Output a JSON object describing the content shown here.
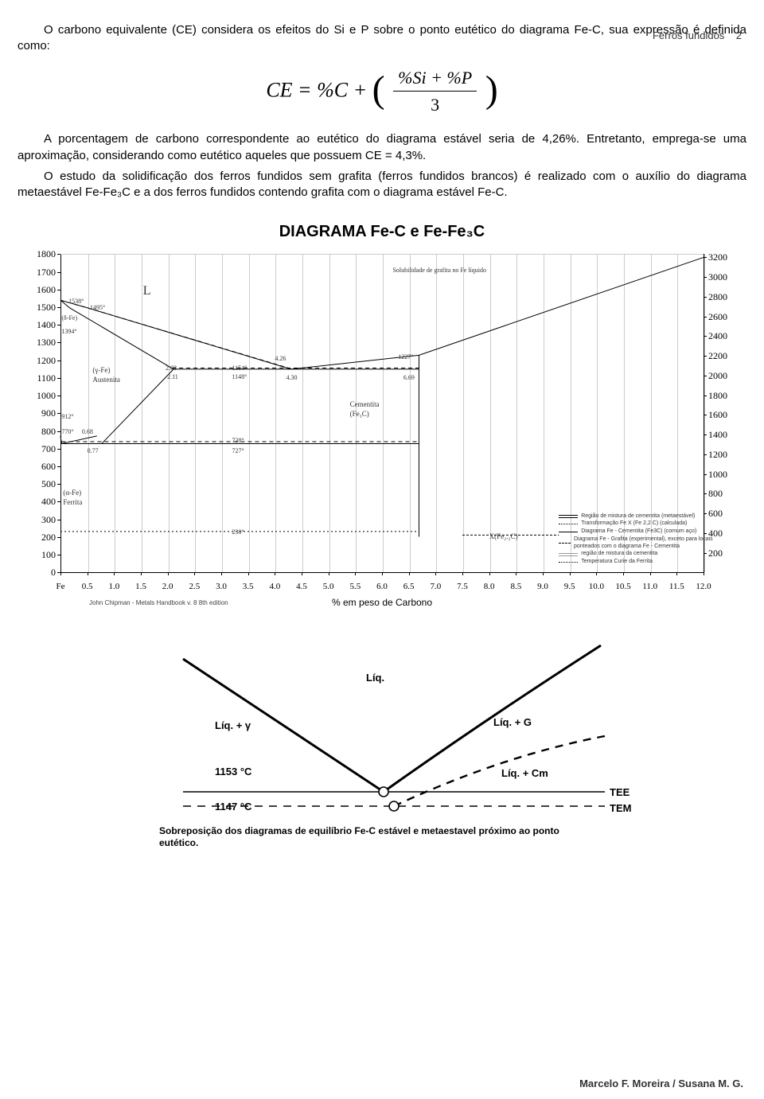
{
  "header": {
    "running": "Ferros fundidos",
    "page": "2"
  },
  "paragraphs": {
    "p1": "O carbono equivalente (CE) considera os efeitos do Si e P sobre o ponto eutético do diagrama Fe-C, sua expressão é definida como:",
    "p2": "A porcentagem de carbono correspondente ao eutético do diagrama estável seria de 4,26%. Entretanto, emprega-se uma aproximação, considerando como eutético aqueles que possuem CE = 4,3%.",
    "p3": "O estudo da solidificação dos ferros fundidos sem grafita (ferros fundidos brancos) é realizado com o auxílio do diagrama metaestável Fe-Fe₃C e a dos ferros fundidos contendo grafita com o diagrama estável Fe-C."
  },
  "equation": {
    "lhs": "CE = %C +",
    "num": "%Si + %P",
    "den": "3"
  },
  "diagramTitle": "DIAGRAMA Fe-C  e  Fe-Fe₃C",
  "chart1": {
    "xlim": [
      0,
      12
    ],
    "ylim": [
      0,
      1800
    ],
    "ylimR": [
      0,
      3200
    ],
    "yticks": [
      0,
      100,
      200,
      300,
      400,
      500,
      600,
      700,
      800,
      900,
      1000,
      1100,
      1200,
      1300,
      1400,
      1500,
      1600,
      1700,
      1800
    ],
    "yticksR": [
      200,
      400,
      600,
      800,
      1000,
      1200,
      1400,
      1600,
      1800,
      2000,
      2200,
      2400,
      2600,
      2800,
      3000,
      3200
    ],
    "xticks": [
      0,
      0.5,
      1.0,
      1.5,
      2.0,
      2.5,
      3.0,
      3.5,
      4.0,
      4.5,
      5.0,
      5.5,
      6.0,
      6.5,
      7.0,
      7.5,
      8.0,
      8.5,
      9.0,
      9.5,
      10.0,
      10.5,
      11.0,
      11.5,
      12.0
    ],
    "xticklabels": [
      "Fe",
      "0.5",
      "1.0",
      "1.5",
      "2.0",
      "2.5",
      "3.0",
      "3.5",
      "4.0",
      "4.5",
      "5.0",
      "5.5",
      "6.0",
      "6.5",
      "7.0",
      "7.5",
      "8.0",
      "8.5",
      "9.0",
      "9.5",
      "10.0",
      "10.5",
      "11.0",
      "11.5",
      "12.0"
    ],
    "xlabel": "% em peso de Carbono",
    "credit": "John Chipman - Metals Handbook v. 8 8th edition",
    "lines": {
      "liquidus_solid": [
        [
          0,
          1538
        ],
        [
          0.5,
          1495
        ],
        [
          4.3,
          1148
        ]
      ],
      "liquidus_dash": [
        [
          0,
          1538
        ],
        [
          0.5,
          1495
        ],
        [
          4.26,
          1154
        ]
      ],
      "liquidus_right": [
        [
          4.3,
          1148
        ],
        [
          6.69,
          1227
        ],
        [
          12.0,
          1780
        ]
      ],
      "solidus_upper": [
        [
          0,
          1538
        ],
        [
          0.17,
          1495
        ],
        [
          2.11,
          1148
        ]
      ],
      "austenite_line": [
        [
          0.77,
          727
        ],
        [
          2.11,
          1148
        ]
      ],
      "eutectic_h": [
        [
          2.11,
          1148
        ],
        [
          6.69,
          1148
        ]
      ],
      "eutectic_h_dash": [
        [
          2.08,
          1154
        ],
        [
          6.69,
          1154
        ]
      ],
      "eutectoid_h": [
        [
          0.0218,
          727
        ],
        [
          6.69,
          727
        ]
      ],
      "eutectoid_h_dash": [
        [
          0.0218,
          738
        ],
        [
          6.69,
          738
        ]
      ],
      "cementite_v": [
        [
          6.69,
          200
        ],
        [
          6.69,
          1227
        ]
      ],
      "ferrite_line": [
        [
          0,
          770
        ],
        [
          0.0218,
          727
        ],
        [
          0.68,
          770
        ]
      ],
      "curie_dash": [
        [
          0,
          230
        ],
        [
          6.69,
          230
        ]
      ],
      "xline": [
        [
          7.5,
          210
        ],
        [
          9.3,
          210
        ]
      ]
    },
    "points": {
      "t1538": "1538°",
      "t1495": "1495°",
      "t1394": "1394°",
      "t1154": "1154°",
      "t1148": "1148°",
      "t912": "912°",
      "t770": "770°",
      "t738": "738°",
      "t727": "727°",
      "t230": "230°",
      "t1227": "1227°",
      "c068": "0.68",
      "c077": "0.77",
      "c208": "2.08",
      "c211": "2.11",
      "c426": "4.26",
      "c430": "4.30",
      "c669": "6.69",
      "L": "L",
      "gFe": "(γ-Fe)\nAustenita",
      "aFe": "(α-Fe)\nFerrita",
      "dFe": "(δ-Fe)",
      "cem": "Cementita\n(Fe₃C)",
      "sol": "Solubilidade de grafita no Fe líquido",
      "xfe": "X(Fe₂.₂C)"
    },
    "legend": [
      "Região de mistura de cementita (metaestável)",
      "Transformação Fe   X (Fe 2,2 C) (calculada)",
      "Diagrama Fe - Cementita (Fe3C) (comum aço)",
      "Diagrama Fe - Grafita (experimental), exceto para locais ponteados com o diagrama Fe - Cementita",
      "região de mistura da cementita",
      "Temperatura Curie da Ferrita"
    ],
    "colors": {
      "axis": "#000",
      "grid": "#cccccc",
      "solid": "#000",
      "dash": "#333",
      "bg": "#ffffff"
    }
  },
  "chart2": {
    "labels": {
      "liq": "Líq.",
      "liqg": "Líq. + γ",
      "liqG": "Líq. + G",
      "liqCm": "Líq. + Cm",
      "t1153": "1153 °C",
      "t1147": "1147 °C",
      "tee": "TEE",
      "tem": "TEM"
    },
    "caption": "Sobreposição dos diagramas de equilíbrio Fe-C estável e metaestavel próximo ao ponto eutético.",
    "curves": {
      "left_solid": [
        [
          70,
          45
        ],
        [
          210,
          138
        ],
        [
          322,
          212
        ]
      ],
      "right_solid": [
        [
          322,
          212
        ],
        [
          452,
          122
        ],
        [
          595,
          28
        ]
      ],
      "right_dash": [
        [
          335,
          230
        ],
        [
          470,
          176
        ],
        [
          600,
          142
        ]
      ],
      "h_upper": [
        [
          70,
          212
        ],
        [
          600,
          212
        ]
      ],
      "h_lower": [
        [
          70,
          230
        ],
        [
          600,
          230
        ]
      ]
    },
    "nodes": {
      "upper": [
        322,
        212
      ],
      "lower": [
        335,
        230
      ]
    },
    "colors": {
      "solid": "#000",
      "dash": "#000"
    }
  },
  "footer": "Marcelo F. Moreira / Susana M. G."
}
